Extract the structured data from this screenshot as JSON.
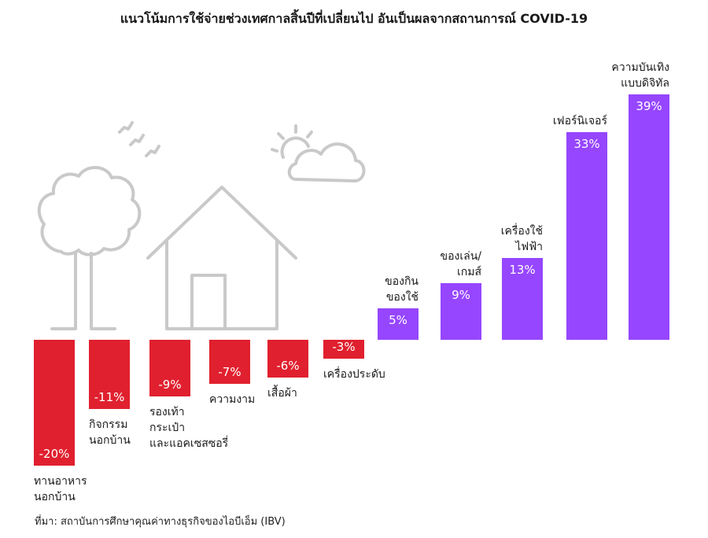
{
  "title": "แนวโน้มการใช้จ่ายช่วงเทศกาลสิ้นปีที่เปลี่ยนไป อันเป็นผลจากสถานการณ์ COVID-19",
  "footer": "ที่มา: สถาบันการศึกษาคุณค่าทางธุรกิจของไอบีเอ็ม (IBV)",
  "colors": {
    "negative": "#e0202e",
    "positive": "#9646ff",
    "illustration": "#c9c9c9"
  },
  "illustration": [
    "tree-icon",
    "house-icon",
    "birds-icon",
    "sun-cloud-icon"
  ],
  "chart_data": {
    "type": "bar",
    "categories": [
      [
        "ทานอาหาร",
        "นอกบ้าน"
      ],
      [
        "กิจกรรม",
        "นอกบ้าน"
      ],
      [
        "รองเท้า",
        "กระเป๋า",
        "และแอคเซสซอรี่"
      ],
      [
        "ความงาม"
      ],
      [
        "เสื้อผ้า"
      ],
      [
        "เครื่องประดับ"
      ],
      [
        "ของกิน",
        "ของใช้"
      ],
      [
        "ของเล่น/",
        "เกมส์"
      ],
      [
        "เครื่องใช้",
        "ไฟฟ้า"
      ],
      [
        "เฟอร์นิเจอร์"
      ],
      [
        "ความบันเทิง",
        "แบบดิจิทัล"
      ]
    ],
    "values": [
      -20,
      -11,
      -9,
      -7,
      -6,
      -3,
      5,
      9,
      13,
      33,
      39
    ],
    "value_labels": [
      "-20%",
      "-11%",
      "-9%",
      "-7%",
      "-6%",
      "-3%",
      "5%",
      "9%",
      "13%",
      "33%",
      "39%"
    ],
    "title": "แนวโน้มการใช้จ่ายช่วงเทศกาลสิ้นปีที่เปลี่ยนไป อันเป็นผลจากสถานการณ์ COVID-19",
    "xlabel": "",
    "ylabel": "",
    "grid": false
  }
}
